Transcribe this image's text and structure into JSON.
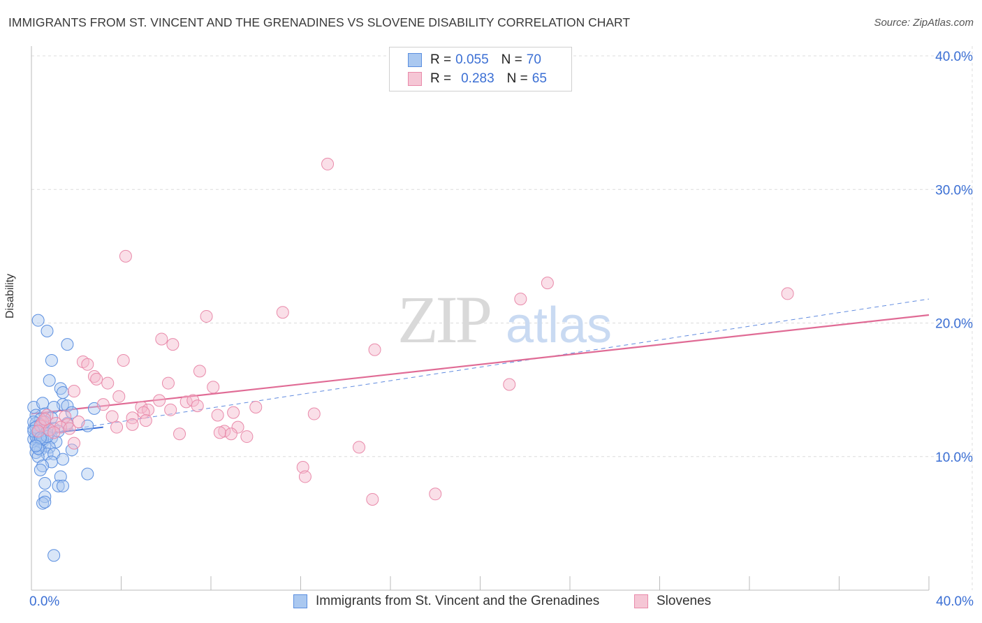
{
  "title": "IMMIGRANTS FROM ST. VINCENT AND THE GRENADINES VS SLOVENE DISABILITY CORRELATION CHART",
  "source": "Source: ZipAtlas.com",
  "watermark": {
    "zip": "ZIP",
    "atlas": "atlas"
  },
  "legend": {
    "series1": {
      "r_label": "R =",
      "r_value": "0.055",
      "n_label": "N =",
      "n_value": "70"
    },
    "series2": {
      "r_label": "R =",
      "r_value": "0.283",
      "n_label": "N =",
      "n_value": "65"
    }
  },
  "colors": {
    "blue_fill": "#aac8f0",
    "blue_stroke": "#5b8fe0",
    "blue_line": "#3a6fd8",
    "pink_fill": "#f5b8cc",
    "pink_stroke": "#e98aaa",
    "pink_line": "#e06b95",
    "axis_text": "#3b6fd4"
  },
  "chart_data": {
    "type": "scatter",
    "title": "IMMIGRANTS FROM ST. VINCENT AND THE GRENADINES VS SLOVENE DISABILITY CORRELATION CHART",
    "xlabel": "",
    "ylabel": "Disability",
    "xlim": [
      0,
      40
    ],
    "ylim": [
      0,
      40
    ],
    "x_tick_labels": [
      "0.0%",
      "40.0%"
    ],
    "y_ticks": [
      10,
      20,
      30,
      40
    ],
    "y_tick_labels": [
      "10.0%",
      "20.0%",
      "30.0%",
      "40.0%"
    ],
    "grid": true,
    "legend_position": "top-center",
    "series": [
      {
        "name": "Immigrants from St. Vincent and the Grenadines",
        "color": "#5b8fe0",
        "r": 0.055,
        "n": 70,
        "trend": {
          "x": [
            0,
            3.2
          ],
          "y": [
            11.6,
            12.2
          ],
          "style": "solid"
        },
        "trend_extended": {
          "x": [
            0,
            40
          ],
          "y": [
            11.6,
            21.8
          ],
          "style": "dashed"
        },
        "points": [
          [
            0.3,
            20.2
          ],
          [
            0.7,
            19.4
          ],
          [
            1.6,
            18.4
          ],
          [
            0.9,
            17.2
          ],
          [
            0.8,
            15.7
          ],
          [
            1.3,
            15.1
          ],
          [
            1.4,
            14.8
          ],
          [
            0.1,
            13.7
          ],
          [
            0.5,
            14.0
          ],
          [
            1.4,
            13.9
          ],
          [
            1.6,
            13.8
          ],
          [
            1.0,
            13.7
          ],
          [
            2.8,
            13.6
          ],
          [
            1.8,
            13.3
          ],
          [
            0.2,
            13.1
          ],
          [
            0.6,
            13.2
          ],
          [
            0.4,
            12.8
          ],
          [
            0.9,
            12.9
          ],
          [
            0.2,
            12.5
          ],
          [
            0.5,
            12.3
          ],
          [
            1.6,
            12.5
          ],
          [
            2.5,
            12.3
          ],
          [
            0.1,
            12.1
          ],
          [
            0.3,
            12.0
          ],
          [
            0.6,
            11.9
          ],
          [
            1.0,
            12.1
          ],
          [
            0.2,
            11.7
          ],
          [
            0.4,
            11.6
          ],
          [
            0.7,
            11.7
          ],
          [
            0.9,
            11.4
          ],
          [
            0.1,
            11.3
          ],
          [
            0.3,
            11.2
          ],
          [
            0.5,
            11.1
          ],
          [
            1.1,
            11.1
          ],
          [
            0.2,
            10.9
          ],
          [
            0.6,
            10.8
          ],
          [
            0.8,
            10.7
          ],
          [
            0.4,
            10.5
          ],
          [
            0.2,
            10.3
          ],
          [
            0.7,
            10.2
          ],
          [
            1.0,
            10.2
          ],
          [
            1.8,
            10.5
          ],
          [
            0.3,
            10.0
          ],
          [
            0.9,
            9.6
          ],
          [
            1.4,
            9.8
          ],
          [
            0.5,
            9.3
          ],
          [
            0.4,
            9.0
          ],
          [
            2.5,
            8.7
          ],
          [
            1.3,
            8.5
          ],
          [
            0.6,
            8.0
          ],
          [
            1.2,
            7.8
          ],
          [
            1.4,
            7.8
          ],
          [
            0.6,
            7.0
          ],
          [
            0.5,
            6.5
          ],
          [
            0.6,
            6.6
          ],
          [
            1.0,
            2.6
          ],
          [
            0.1,
            12.6
          ],
          [
            0.2,
            11.5
          ],
          [
            0.4,
            12.4
          ],
          [
            0.3,
            11.8
          ],
          [
            0.5,
            11.3
          ],
          [
            0.2,
            12.2
          ],
          [
            0.7,
            11.5
          ],
          [
            0.3,
            10.6
          ],
          [
            0.1,
            11.9
          ],
          [
            0.8,
            12.0
          ],
          [
            0.4,
            11.4
          ],
          [
            0.6,
            12.6
          ],
          [
            1.2,
            11.9
          ],
          [
            0.2,
            10.8
          ]
        ]
      },
      {
        "name": "Slovenes",
        "color": "#e98aaa",
        "r": 0.283,
        "n": 65,
        "trend": {
          "x": [
            0,
            40
          ],
          "y": [
            13.2,
            20.6
          ],
          "style": "solid"
        },
        "points": [
          [
            13.2,
            31.9
          ],
          [
            4.2,
            25.0
          ],
          [
            23.0,
            23.0
          ],
          [
            33.7,
            22.2
          ],
          [
            21.8,
            21.8
          ],
          [
            11.2,
            20.8
          ],
          [
            7.8,
            20.5
          ],
          [
            5.8,
            18.8
          ],
          [
            6.3,
            18.4
          ],
          [
            15.3,
            18.0
          ],
          [
            2.3,
            17.1
          ],
          [
            4.1,
            17.2
          ],
          [
            2.5,
            16.9
          ],
          [
            7.5,
            16.4
          ],
          [
            2.8,
            16.0
          ],
          [
            2.9,
            15.8
          ],
          [
            3.4,
            15.5
          ],
          [
            6.1,
            15.5
          ],
          [
            21.3,
            15.4
          ],
          [
            8.1,
            15.2
          ],
          [
            1.9,
            14.9
          ],
          [
            3.9,
            14.5
          ],
          [
            5.7,
            14.2
          ],
          [
            6.9,
            14.1
          ],
          [
            7.2,
            14.2
          ],
          [
            3.2,
            13.9
          ],
          [
            7.4,
            13.8
          ],
          [
            4.9,
            13.7
          ],
          [
            10.0,
            13.7
          ],
          [
            5.2,
            13.5
          ],
          [
            6.2,
            13.5
          ],
          [
            5.0,
            13.3
          ],
          [
            9.0,
            13.3
          ],
          [
            0.7,
            13.1
          ],
          [
            8.3,
            13.1
          ],
          [
            12.6,
            13.2
          ],
          [
            1.5,
            13.0
          ],
          [
            3.6,
            13.0
          ],
          [
            4.5,
            12.9
          ],
          [
            5.1,
            12.7
          ],
          [
            0.5,
            12.6
          ],
          [
            1.1,
            12.5
          ],
          [
            1.6,
            12.4
          ],
          [
            4.5,
            12.4
          ],
          [
            1.3,
            12.2
          ],
          [
            3.8,
            12.2
          ],
          [
            9.2,
            12.2
          ],
          [
            0.4,
            12.3
          ],
          [
            1.7,
            12.1
          ],
          [
            0.8,
            12.0
          ],
          [
            8.6,
            11.9
          ],
          [
            8.4,
            11.8
          ],
          [
            6.6,
            11.7
          ],
          [
            8.9,
            11.7
          ],
          [
            9.6,
            11.5
          ],
          [
            0.3,
            11.9
          ],
          [
            1.9,
            11.0
          ],
          [
            14.6,
            10.7
          ],
          [
            12.1,
            9.2
          ],
          [
            12.2,
            8.5
          ],
          [
            18.0,
            7.2
          ],
          [
            15.2,
            6.8
          ],
          [
            0.6,
            12.8
          ],
          [
            2.1,
            12.6
          ],
          [
            1.0,
            11.8
          ]
        ]
      }
    ]
  },
  "bottom_legend": {
    "series1_label": "Immigrants from St. Vincent and the Grenadines",
    "series2_label": "Slovenes"
  }
}
